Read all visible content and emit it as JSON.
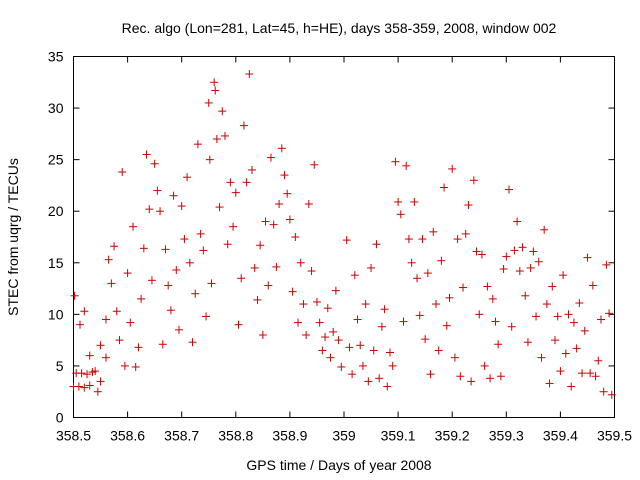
{
  "chart_data": {
    "type": "scatter",
    "title": "Rec. algo (Lon=281, Lat=45, h=HE), days 358-359, 2008, window 002",
    "xlabel": "GPS time / Days of year 2008",
    "ylabel": "STEC from uqrg / TECUs",
    "xlim": [
      358.5,
      359.5
    ],
    "ylim": [
      0,
      35
    ],
    "xticks": [
      358.5,
      358.6,
      358.7,
      358.8,
      358.9,
      359.0,
      359.1,
      359.2,
      359.3,
      359.4,
      359.5
    ],
    "xtick_labels": [
      "358.5",
      "358.6",
      "358.7",
      "358.8",
      "358.9",
      "359",
      "359.1",
      "359.2",
      "359.3",
      "359.4",
      "359.5"
    ],
    "yticks": [
      0,
      5,
      10,
      15,
      20,
      25,
      30,
      35
    ],
    "ytick_labels": [
      "0",
      "5",
      "10",
      "15",
      "20",
      "25",
      "30",
      "35"
    ],
    "grid": false,
    "marker": "+",
    "series_color": "#cc0000",
    "points": [
      [
        358.5,
        3.0
      ],
      [
        358.51,
        3.0
      ],
      [
        358.52,
        2.9
      ],
      [
        358.53,
        3.1
      ],
      [
        358.505,
        4.3
      ],
      [
        358.515,
        4.3
      ],
      [
        358.525,
        4.2
      ],
      [
        358.535,
        4.4
      ],
      [
        358.502,
        11.8
      ],
      [
        358.512,
        9.0
      ],
      [
        358.52,
        10.3
      ],
      [
        358.53,
        6.0
      ],
      [
        358.54,
        4.5
      ],
      [
        358.545,
        2.5
      ],
      [
        358.55,
        7.0
      ],
      [
        358.55,
        3.5
      ],
      [
        358.56,
        9.5
      ],
      [
        358.56,
        5.8
      ],
      [
        358.565,
        15.3
      ],
      [
        358.57,
        13.0
      ],
      [
        358.575,
        16.6
      ],
      [
        358.58,
        10.3
      ],
      [
        358.585,
        7.5
      ],
      [
        358.59,
        23.8
      ],
      [
        358.595,
        5.0
      ],
      [
        358.6,
        14.0
      ],
      [
        358.605,
        9.2
      ],
      [
        358.61,
        18.5
      ],
      [
        358.615,
        4.9
      ],
      [
        358.62,
        6.8
      ],
      [
        358.625,
        11.5
      ],
      [
        358.63,
        16.4
      ],
      [
        358.635,
        25.5
      ],
      [
        358.64,
        20.2
      ],
      [
        358.645,
        13.3
      ],
      [
        358.65,
        24.6
      ],
      [
        358.655,
        22.0
      ],
      [
        358.66,
        20.0
      ],
      [
        358.665,
        7.1
      ],
      [
        358.67,
        16.3
      ],
      [
        358.675,
        12.8
      ],
      [
        358.68,
        10.4
      ],
      [
        358.685,
        21.5
      ],
      [
        358.69,
        14.3
      ],
      [
        358.695,
        8.5
      ],
      [
        358.7,
        20.5
      ],
      [
        358.705,
        17.3
      ],
      [
        358.71,
        23.3
      ],
      [
        358.715,
        15.0
      ],
      [
        358.72,
        7.3
      ],
      [
        358.725,
        12.0
      ],
      [
        358.73,
        26.5
      ],
      [
        358.735,
        17.8
      ],
      [
        358.74,
        16.2
      ],
      [
        358.745,
        9.8
      ],
      [
        358.75,
        30.5
      ],
      [
        358.752,
        25.0
      ],
      [
        358.755,
        13.0
      ],
      [
        358.76,
        32.5
      ],
      [
        358.762,
        31.7
      ],
      [
        358.765,
        27.0
      ],
      [
        358.77,
        20.4
      ],
      [
        358.775,
        29.7
      ],
      [
        358.78,
        27.3
      ],
      [
        358.785,
        16.8
      ],
      [
        358.79,
        22.8
      ],
      [
        358.795,
        18.5
      ],
      [
        358.8,
        21.8
      ],
      [
        358.805,
        9.0
      ],
      [
        358.81,
        13.5
      ],
      [
        358.815,
        28.3
      ],
      [
        358.82,
        22.8
      ],
      [
        358.825,
        33.3
      ],
      [
        358.83,
        24.0
      ],
      [
        358.835,
        14.5
      ],
      [
        358.84,
        11.4
      ],
      [
        358.845,
        16.7
      ],
      [
        358.85,
        8.0
      ],
      [
        358.855,
        19.0
      ],
      [
        358.86,
        12.8
      ],
      [
        358.865,
        25.2
      ],
      [
        358.87,
        18.7
      ],
      [
        358.875,
        14.6
      ],
      [
        358.88,
        20.7
      ],
      [
        358.885,
        26.1
      ],
      [
        358.89,
        23.5
      ],
      [
        358.895,
        21.7
      ],
      [
        358.9,
        19.2
      ],
      [
        358.905,
        12.2
      ],
      [
        358.91,
        17.5
      ],
      [
        358.915,
        9.2
      ],
      [
        358.92,
        15.0
      ],
      [
        358.925,
        11.0
      ],
      [
        358.93,
        8.0
      ],
      [
        358.935,
        20.7
      ],
      [
        358.94,
        14.2
      ],
      [
        358.945,
        24.5
      ],
      [
        358.95,
        11.2
      ],
      [
        358.955,
        9.2
      ],
      [
        358.96,
        6.5
      ],
      [
        358.965,
        7.8
      ],
      [
        358.97,
        10.6
      ],
      [
        358.975,
        5.8
      ],
      [
        358.98,
        8.3
      ],
      [
        358.985,
        12.3
      ],
      [
        358.99,
        7.5
      ],
      [
        358.995,
        4.9
      ],
      [
        359.005,
        17.2
      ],
      [
        359.01,
        6.8
      ],
      [
        359.015,
        4.2
      ],
      [
        359.02,
        13.8
      ],
      [
        359.025,
        9.5
      ],
      [
        359.03,
        7.0
      ],
      [
        359.035,
        5.0
      ],
      [
        359.04,
        11.0
      ],
      [
        359.045,
        3.5
      ],
      [
        359.05,
        14.5
      ],
      [
        359.055,
        6.5
      ],
      [
        359.06,
        16.8
      ],
      [
        359.065,
        3.8
      ],
      [
        359.07,
        8.8
      ],
      [
        359.075,
        10.5
      ],
      [
        359.08,
        3.0
      ],
      [
        359.085,
        6.3
      ],
      [
        359.09,
        5.0
      ],
      [
        359.095,
        24.8
      ],
      [
        359.1,
        20.9
      ],
      [
        359.105,
        19.7
      ],
      [
        359.11,
        9.3
      ],
      [
        359.115,
        24.4
      ],
      [
        359.12,
        17.3
      ],
      [
        359.125,
        15.0
      ],
      [
        359.13,
        20.9
      ],
      [
        359.135,
        13.5
      ],
      [
        359.14,
        9.9
      ],
      [
        359.145,
        17.3
      ],
      [
        359.15,
        7.6
      ],
      [
        359.155,
        14.0
      ],
      [
        359.16,
        4.2
      ],
      [
        359.165,
        18.0
      ],
      [
        359.17,
        11.0
      ],
      [
        359.175,
        6.5
      ],
      [
        359.18,
        15.2
      ],
      [
        359.185,
        22.3
      ],
      [
        359.19,
        8.9
      ],
      [
        359.195,
        11.6
      ],
      [
        359.2,
        24.1
      ],
      [
        359.205,
        5.8
      ],
      [
        359.21,
        17.3
      ],
      [
        359.215,
        4.0
      ],
      [
        359.22,
        12.6
      ],
      [
        359.225,
        17.8
      ],
      [
        359.23,
        20.6
      ],
      [
        359.235,
        3.5
      ],
      [
        359.24,
        23.0
      ],
      [
        359.245,
        16.1
      ],
      [
        359.25,
        10.0
      ],
      [
        359.255,
        15.8
      ],
      [
        359.26,
        5.0
      ],
      [
        359.265,
        12.7
      ],
      [
        359.27,
        3.8
      ],
      [
        359.275,
        11.5
      ],
      [
        359.28,
        9.3
      ],
      [
        359.285,
        7.1
      ],
      [
        359.29,
        4.0
      ],
      [
        359.295,
        14.4
      ],
      [
        359.3,
        15.6
      ],
      [
        359.305,
        22.1
      ],
      [
        359.31,
        8.8
      ],
      [
        359.315,
        16.2
      ],
      [
        359.32,
        19.0
      ],
      [
        359.325,
        14.2
      ],
      [
        359.33,
        16.5
      ],
      [
        359.335,
        11.8
      ],
      [
        359.34,
        7.3
      ],
      [
        359.345,
        14.5
      ],
      [
        359.35,
        16.1
      ],
      [
        359.355,
        9.8
      ],
      [
        359.36,
        15.1
      ],
      [
        359.365,
        5.8
      ],
      [
        359.37,
        18.2
      ],
      [
        359.375,
        11.0
      ],
      [
        359.38,
        3.3
      ],
      [
        359.385,
        12.7
      ],
      [
        359.39,
        7.5
      ],
      [
        359.395,
        9.8
      ],
      [
        359.4,
        4.5
      ],
      [
        359.405,
        13.8
      ],
      [
        359.41,
        6.2
      ],
      [
        359.415,
        10.0
      ],
      [
        359.42,
        3.0
      ],
      [
        359.425,
        9.2
      ],
      [
        359.43,
        6.7
      ],
      [
        359.435,
        11.1
      ],
      [
        359.44,
        4.3
      ],
      [
        359.445,
        8.4
      ],
      [
        359.45,
        15.5
      ],
      [
        359.455,
        4.3
      ],
      [
        359.46,
        12.8
      ],
      [
        359.465,
        4.0
      ],
      [
        359.47,
        5.5
      ],
      [
        359.475,
        9.5
      ],
      [
        359.48,
        2.5
      ],
      [
        359.485,
        14.8
      ],
      [
        359.49,
        10.1
      ],
      [
        359.495,
        2.2
      ]
    ]
  }
}
